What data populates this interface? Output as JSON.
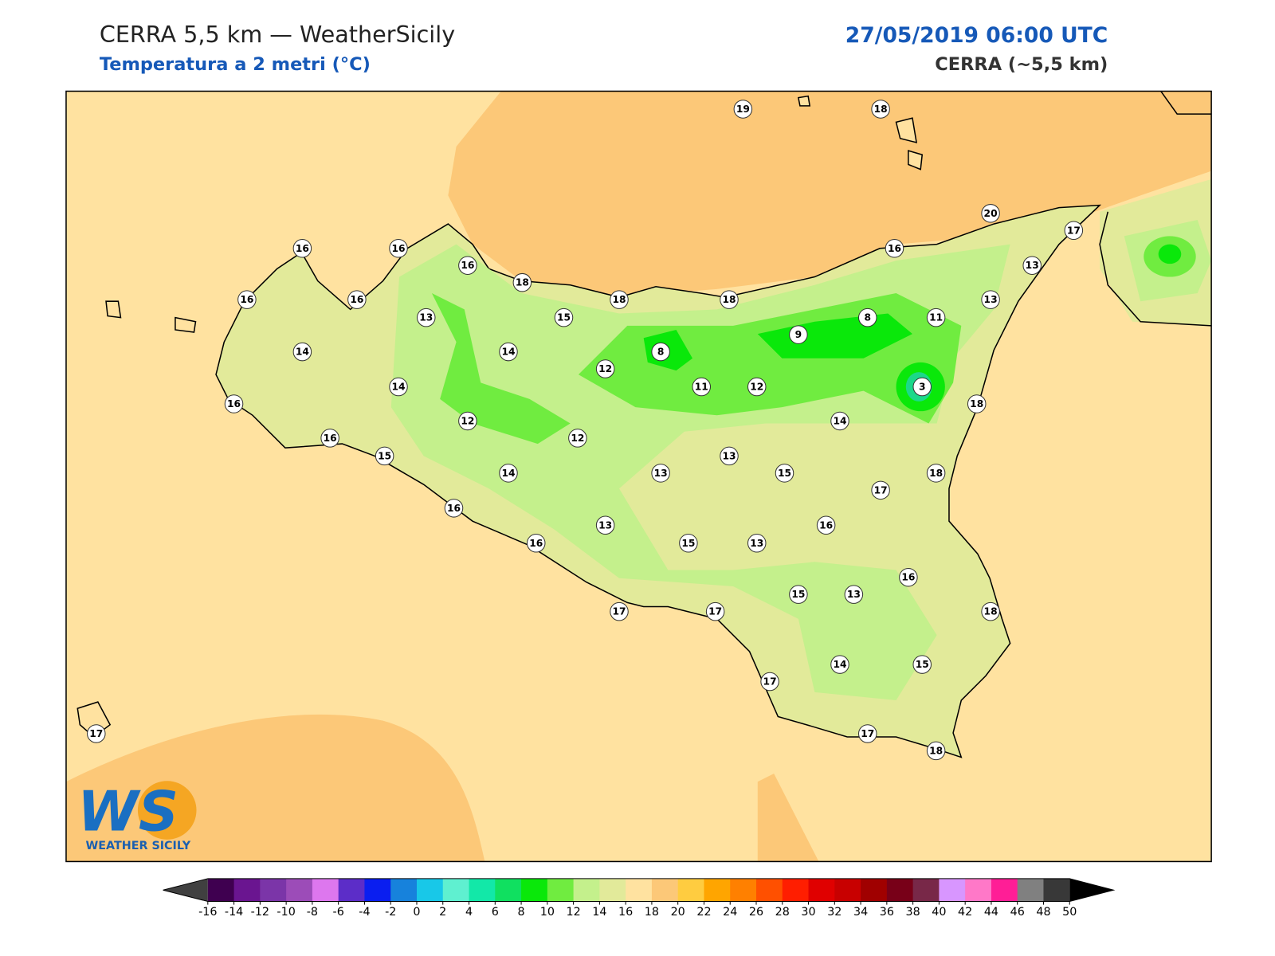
{
  "header": {
    "title": "CERRA 5,5 km — WeatherSicily",
    "subtitle": "Temperatura a 2 metri (°C)",
    "datetime": "27/05/2019 06:00 UTC",
    "model": "CERRA (~5,5 km)"
  },
  "logo": {
    "mark": "WS",
    "name": "WEATHER SICILY"
  },
  "station_values": [
    19,
    18,
    20,
    17,
    16,
    16,
    16,
    16,
    13,
    18,
    16,
    16,
    18,
    18,
    13,
    13,
    15,
    8,
    11,
    9,
    14,
    14,
    8,
    12,
    14,
    11,
    12,
    3,
    16,
    18,
    12,
    14,
    16,
    12,
    15,
    13,
    14,
    13,
    15,
    18,
    17,
    16,
    16,
    13,
    16,
    15,
    13,
    16,
    15,
    13,
    18,
    17,
    17,
    14,
    15,
    17,
    17,
    17,
    18
  ],
  "colorbar": {
    "ticks": [
      -16,
      -14,
      -12,
      -10,
      -8,
      -6,
      -4,
      -2,
      0,
      2,
      4,
      6,
      8,
      10,
      12,
      14,
      16,
      18,
      20,
      22,
      24,
      26,
      28,
      30,
      32,
      34,
      36,
      38,
      40,
      42,
      44,
      46,
      48,
      50
    ],
    "colors": [
      "#3f0050",
      "#6a1590",
      "#7b35a8",
      "#9c4cb8",
      "#dd77ee",
      "#5c2dc8",
      "#0a1ef0",
      "#1782dc",
      "#18c8e8",
      "#5ff0d0",
      "#12e8a8",
      "#10e060",
      "#0ae80a",
      "#70ec40",
      "#c4f08c",
      "#e2ea9a",
      "#ffe2a0",
      "#fcc878",
      "#ffcc40",
      "#ffa500",
      "#ff8000",
      "#ff5000",
      "#ff1e00",
      "#e00000",
      "#c80000",
      "#a00000",
      "#780018",
      "#782848",
      "#d896ff",
      "#ff78c8",
      "#ff1e96",
      "#808080",
      "#383838"
    ],
    "under_color": "#404040",
    "over_color": "#000000"
  }
}
